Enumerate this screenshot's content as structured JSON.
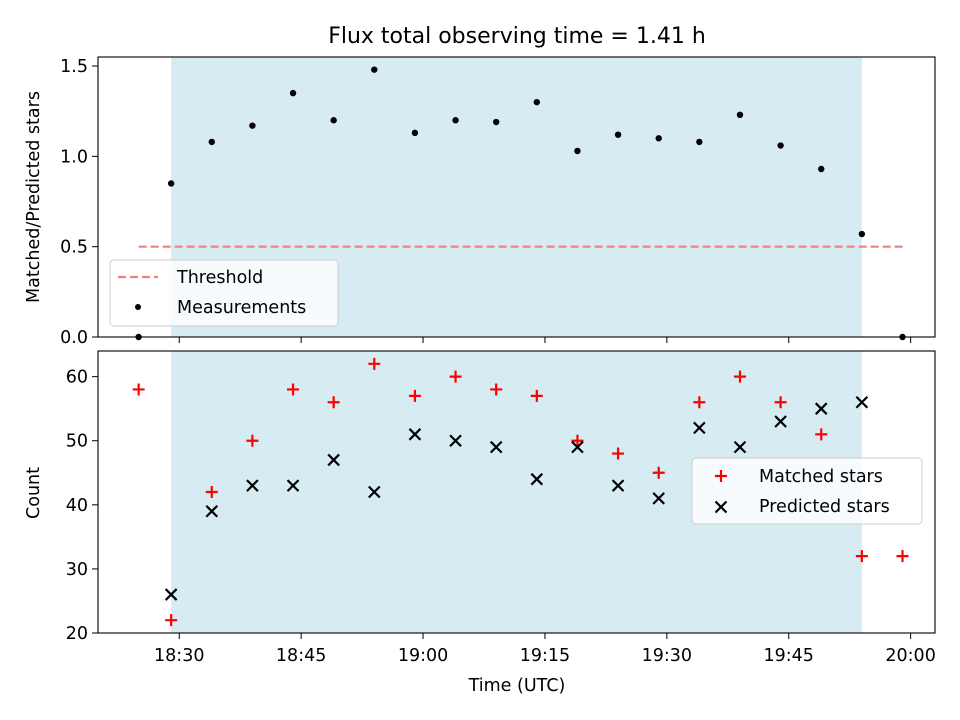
{
  "colors": {
    "shade": "#add8e6",
    "threshold": "#f08080",
    "measurement": "#000000",
    "matched": "#ff0000",
    "predicted": "#000000"
  },
  "chart_data": [
    {
      "type": "scatter",
      "title": "Flux total observing time = 1.41 h",
      "ylabel": "Matched/Predicted stars",
      "xlim": [
        "18:20",
        "20:03"
      ],
      "ylim": [
        0,
        1.55
      ],
      "yticks": [
        "0.0",
        "0.5",
        "1.0",
        "1.5"
      ],
      "shaded_span": [
        "18:29",
        "19:54"
      ],
      "legend_position": "lower-left",
      "series": [
        {
          "name": "Threshold",
          "style": "dashed-line",
          "x": [
            "18:25",
            "19:59"
          ],
          "y": [
            0.5,
            0.5
          ]
        },
        {
          "name": "Measurements",
          "style": "dot",
          "x": [
            "18:25",
            "18:29",
            "18:34",
            "18:39",
            "18:44",
            "18:49",
            "18:54",
            "18:59",
            "19:04",
            "19:09",
            "19:14",
            "19:19",
            "19:24",
            "19:29",
            "19:34",
            "19:39",
            "19:44",
            "19:49",
            "19:54",
            "19:59"
          ],
          "y": [
            0.0,
            0.85,
            1.08,
            1.17,
            1.35,
            1.2,
            1.48,
            1.13,
            1.2,
            1.19,
            1.3,
            1.03,
            1.12,
            1.1,
            1.08,
            1.23,
            1.06,
            0.93,
            0.57,
            0.0
          ]
        }
      ]
    },
    {
      "type": "scatter",
      "xlabel": "Time (UTC)",
      "ylabel": "Count",
      "xlim": [
        "18:20",
        "20:03"
      ],
      "ylim": [
        20,
        64
      ],
      "yticks": [
        "20",
        "30",
        "40",
        "50",
        "60"
      ],
      "xticks": [
        "18:30",
        "18:45",
        "19:00",
        "19:15",
        "19:30",
        "19:45",
        "20:00"
      ],
      "shaded_span": [
        "18:29",
        "19:54"
      ],
      "legend_position": "center-right",
      "series": [
        {
          "name": "Matched stars",
          "style": "plus",
          "x": [
            "18:25",
            "18:29",
            "18:34",
            "18:39",
            "18:44",
            "18:49",
            "18:54",
            "18:59",
            "19:04",
            "19:09",
            "19:14",
            "19:19",
            "19:24",
            "19:29",
            "19:34",
            "19:39",
            "19:44",
            "19:49",
            "19:54",
            "19:59"
          ],
          "y": [
            58,
            22,
            42,
            50,
            58,
            56,
            62,
            57,
            60,
            58,
            57,
            50,
            48,
            45,
            56,
            60,
            56,
            51,
            32,
            32
          ]
        },
        {
          "name": "Predicted stars",
          "style": "cross",
          "x": [
            "18:29",
            "18:34",
            "18:39",
            "18:44",
            "18:49",
            "18:54",
            "18:59",
            "19:04",
            "19:09",
            "19:14",
            "19:19",
            "19:24",
            "19:29",
            "19:34",
            "19:39",
            "19:44",
            "19:49",
            "19:54"
          ],
          "y": [
            26,
            39,
            43,
            43,
            47,
            42,
            51,
            50,
            49,
            44,
            49,
            43,
            41,
            52,
            49,
            53,
            55,
            56
          ]
        }
      ]
    }
  ]
}
